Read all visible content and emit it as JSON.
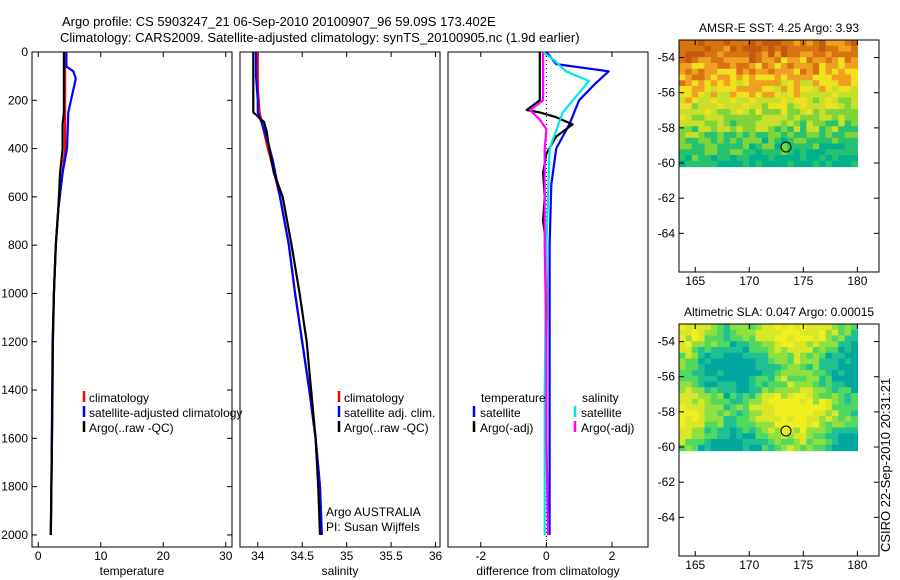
{
  "header": {
    "line1": "Argo profile: CS 5903247_21 06-Sep-2010 20100907_96 59.09S 173.402E",
    "line2": "Climatology: CARS2009. Satellite-adjusted climatology: synTS_20100905.nc (1.9d earlier)"
  },
  "side_text": "CSIRO 22-Sep-2010 20:31:21",
  "chart_data": [
    {
      "type": "line",
      "id": "temperature",
      "xlabel": "temperature",
      "xlim": [
        -1,
        31
      ],
      "ylim": [
        2050,
        0
      ],
      "xticks": [
        0,
        10,
        20,
        30
      ],
      "yticks": [
        0,
        200,
        400,
        600,
        800,
        1000,
        1200,
        1400,
        1600,
        1800,
        2000
      ],
      "legend": [
        "climatology",
        "satellite-adjusted climatology",
        "Argo(..raw -QC)"
      ],
      "series": [
        {
          "name": "climatology",
          "color": "#ff0000",
          "points": [
            [
              4.3,
              0
            ],
            [
              4.3,
              100
            ],
            [
              4.3,
              250
            ],
            [
              4.3,
              400
            ],
            [
              3.9,
              500
            ],
            [
              3.2,
              650
            ],
            [
              2.8,
              800
            ],
            [
              2.5,
              1000
            ],
            [
              2.35,
              1200
            ],
            [
              2.25,
              1500
            ],
            [
              2.1,
              1800
            ],
            [
              2.0,
              2000
            ]
          ]
        },
        {
          "name": "satellite-adjusted climatology",
          "color": "#0000ff",
          "points": [
            [
              4.5,
              0
            ],
            [
              4.5,
              60
            ],
            [
              5.6,
              80
            ],
            [
              6.0,
              110
            ],
            [
              4.8,
              250
            ],
            [
              4.6,
              400
            ],
            [
              3.9,
              500
            ],
            [
              3.2,
              650
            ],
            [
              2.8,
              800
            ],
            [
              2.5,
              1000
            ],
            [
              2.35,
              1200
            ],
            [
              2.25,
              1500
            ],
            [
              2.1,
              1800
            ],
            [
              2.0,
              2000
            ]
          ]
        },
        {
          "name": "Argo(..raw -QC)",
          "color": "#000000",
          "points": [
            [
              4.1,
              0
            ],
            [
              4.1,
              250
            ],
            [
              3.9,
              300
            ],
            [
              3.9,
              400
            ],
            [
              3.5,
              500
            ],
            [
              3.2,
              650
            ],
            [
              2.8,
              800
            ],
            [
              2.5,
              1000
            ],
            [
              2.3,
              1200
            ],
            [
              2.2,
              1500
            ],
            [
              2.1,
              1800
            ],
            [
              2.0,
              2000
            ]
          ]
        }
      ]
    },
    {
      "type": "line",
      "id": "salinity",
      "xlabel": "salinity",
      "xlim": [
        33.8,
        36.05
      ],
      "ylim": [
        2050,
        0
      ],
      "xticks": [
        34,
        34.5,
        35,
        35.5,
        36
      ],
      "yticks": [],
      "legend": [
        "climatology",
        "satellite adj. clim.",
        "Argo(..raw -QC)"
      ],
      "annotation": [
        "Argo AUSTRALIA",
        "PI: Susan Wijffels"
      ],
      "series": [
        {
          "name": "climatology",
          "color": "#ff0000",
          "points": [
            [
              34.0,
              0
            ],
            [
              34.0,
              150
            ],
            [
              34.02,
              250
            ],
            [
              34.05,
              300
            ],
            [
              34.1,
              380
            ],
            [
              34.15,
              450
            ],
            [
              34.25,
              600
            ],
            [
              34.35,
              800
            ],
            [
              34.42,
              1000
            ],
            [
              34.5,
              1200
            ],
            [
              34.58,
              1400
            ],
            [
              34.65,
              1600
            ],
            [
              34.7,
              1800
            ],
            [
              34.72,
              2000
            ]
          ]
        },
        {
          "name": "satellite adj. clim.",
          "color": "#0000ff",
          "points": [
            [
              33.98,
              0
            ],
            [
              33.98,
              100
            ],
            [
              34.0,
              200
            ],
            [
              34.0,
              250
            ],
            [
              34.05,
              300
            ],
            [
              34.12,
              380
            ],
            [
              34.17,
              450
            ],
            [
              34.25,
              600
            ],
            [
              34.35,
              800
            ],
            [
              34.42,
              1000
            ],
            [
              34.5,
              1200
            ],
            [
              34.58,
              1400
            ],
            [
              34.65,
              1600
            ],
            [
              34.7,
              1800
            ],
            [
              34.72,
              2000
            ]
          ]
        },
        {
          "name": "Argo(..raw -QC)",
          "color": "#000000",
          "points": [
            [
              33.95,
              0
            ],
            [
              33.95,
              250
            ],
            [
              33.98,
              260
            ],
            [
              34.07,
              290
            ],
            [
              34.1,
              330
            ],
            [
              34.13,
              400
            ],
            [
              34.18,
              500
            ],
            [
              34.28,
              600
            ],
            [
              34.38,
              800
            ],
            [
              34.47,
              1000
            ],
            [
              34.55,
              1200
            ],
            [
              34.6,
              1400
            ],
            [
              34.65,
              1600
            ],
            [
              34.68,
              1800
            ],
            [
              34.7,
              2000
            ]
          ]
        }
      ]
    },
    {
      "type": "line",
      "id": "difference",
      "xlabel": "difference from climatology",
      "xlim": [
        -3,
        3.1
      ],
      "ylim": [
        2050,
        0
      ],
      "xticks": [
        -2,
        0,
        2
      ],
      "yticks": [],
      "legend_titles": [
        "temperature",
        "salinity"
      ],
      "legend": [
        {
          "label": "satellite",
          "color": "#0000ff"
        },
        {
          "label": "Argo(-adj)",
          "color": "#000000"
        },
        {
          "label": "satellite",
          "color": "#00e5e5"
        },
        {
          "label": "Argo(-adj)",
          "color": "#ff00ff"
        }
      ],
      "series": [
        {
          "name": "temperature satellite",
          "color": "#0000ff",
          "points": [
            [
              0,
              0
            ],
            [
              0.3,
              50
            ],
            [
              1.9,
              80
            ],
            [
              1.5,
              130
            ],
            [
              1.0,
              200
            ],
            [
              0.7,
              300
            ],
            [
              0.3,
              400
            ],
            [
              0.15,
              550
            ],
            [
              0.1,
              800
            ],
            [
              0.1,
              1200
            ],
            [
              0.1,
              1600
            ],
            [
              0.1,
              2000
            ]
          ]
        },
        {
          "name": "temperature Argo(-adj)",
          "color": "#000000",
          "points": [
            [
              -0.2,
              0
            ],
            [
              -0.2,
              200
            ],
            [
              -0.6,
              240
            ],
            [
              -0.2,
              250
            ],
            [
              0.3,
              270
            ],
            [
              0.8,
              300
            ],
            [
              0.3,
              350
            ],
            [
              0,
              420
            ],
            [
              -0.1,
              500
            ],
            [
              -0.05,
              600
            ],
            [
              -0.1,
              700
            ],
            [
              0,
              800
            ],
            [
              0,
              1000
            ],
            [
              0,
              1200
            ]
          ]
        },
        {
          "name": "salinity satellite",
          "color": "#00e5e5",
          "points": [
            [
              -0.1,
              0
            ],
            [
              0.2,
              30
            ],
            [
              0.6,
              80
            ],
            [
              1.3,
              120
            ],
            [
              0.5,
              250
            ],
            [
              0.1,
              400
            ],
            [
              0,
              800
            ],
            [
              -0.05,
              1400
            ],
            [
              -0.05,
              2000
            ]
          ]
        },
        {
          "name": "salinity Argo(-adj)",
          "color": "#ff00ff",
          "points": [
            [
              -0.1,
              0
            ],
            [
              -0.1,
              200
            ],
            [
              -0.5,
              240
            ],
            [
              -0.2,
              280
            ],
            [
              0,
              320
            ],
            [
              -0.05,
              400
            ],
            [
              -0.05,
              800
            ],
            [
              0,
              1200
            ],
            [
              0,
              1600
            ],
            [
              0.05,
              2000
            ]
          ]
        }
      ]
    },
    {
      "type": "heatmap",
      "id": "amsre-sst",
      "title": "AMSR-E SST: 4.25 Argo: 3.93",
      "xlim": [
        163.5,
        182
      ],
      "ylim": [
        -66.2,
        -53
      ],
      "xticks": [
        165,
        170,
        175,
        180
      ],
      "yticks": [
        -54,
        -56,
        -58,
        -60,
        -62,
        -64
      ],
      "data_extent": {
        "lon": [
          163.5,
          180
        ],
        "lat": [
          -60.2,
          -53
        ]
      },
      "profile_location": {
        "lon": 173.402,
        "lat": -59.09
      }
    },
    {
      "type": "heatmap",
      "id": "altimetric-sla",
      "title": "Altimetric SLA: 0.047 Argo: 0.00015",
      "xlim": [
        163.5,
        182
      ],
      "ylim": [
        -66.2,
        -53
      ],
      "xticks": [
        165,
        170,
        175,
        180
      ],
      "yticks": [
        -54,
        -56,
        -58,
        -60,
        -62,
        -64
      ],
      "data_extent": {
        "lon": [
          163.5,
          180
        ],
        "lat": [
          -60.2,
          -53
        ]
      },
      "profile_location": {
        "lon": 173.402,
        "lat": -59.09
      }
    }
  ]
}
